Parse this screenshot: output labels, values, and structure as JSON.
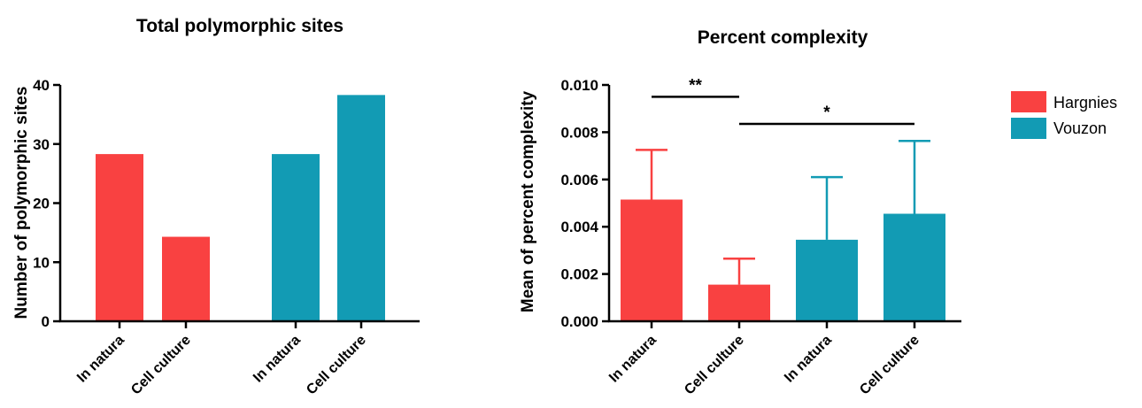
{
  "colors": {
    "hargnies": "#f94141",
    "vouzon": "#129bb4",
    "axis": "#000000"
  },
  "legend": [
    {
      "label": "Hargnies",
      "color": "#f94141"
    },
    {
      "label": "Vouzon",
      "color": "#129bb4"
    }
  ],
  "chart_data": [
    {
      "type": "bar",
      "title": "Total polymorphic sites",
      "ylabel": "Number of polymorphic sites",
      "xlabel": "",
      "ylim": [
        0,
        40
      ],
      "yticks": [
        "0",
        "10",
        "20",
        "30",
        "40"
      ],
      "yticks_values": [
        0,
        10,
        20,
        30,
        40
      ],
      "categories": [
        "In natura",
        "Cell culture",
        "In natura",
        "Cell culture"
      ],
      "groups": [
        "Hargnies",
        "Hargnies",
        "Vouzon",
        "Vouzon"
      ],
      "values": [
        28.3,
        14.3,
        28.3,
        38.3
      ]
    },
    {
      "type": "bar",
      "title": "Percent complexity",
      "ylabel": "Mean of percent complexity",
      "xlabel": "",
      "ylim": [
        0,
        0.01
      ],
      "yticks": [
        "0.000",
        "0.002",
        "0.004",
        "0.006",
        "0.008",
        "0.010"
      ],
      "yticks_values": [
        0,
        0.002,
        0.004,
        0.006,
        0.008,
        0.01
      ],
      "categories": [
        "In natura",
        "Cell culture",
        "In natura",
        "Cell culture"
      ],
      "groups": [
        "Hargnies",
        "Hargnies",
        "Vouzon",
        "Vouzon"
      ],
      "values": [
        0.00515,
        0.00155,
        0.00345,
        0.00455
      ],
      "error_upper": [
        0.00725,
        0.00265,
        0.0061,
        0.00763
      ],
      "significance": [
        {
          "label": "**",
          "from": 0,
          "to": 1,
          "y": 0.0095
        },
        {
          "label": "*",
          "from": 1,
          "to": 3,
          "y": 0.00835
        }
      ]
    }
  ]
}
